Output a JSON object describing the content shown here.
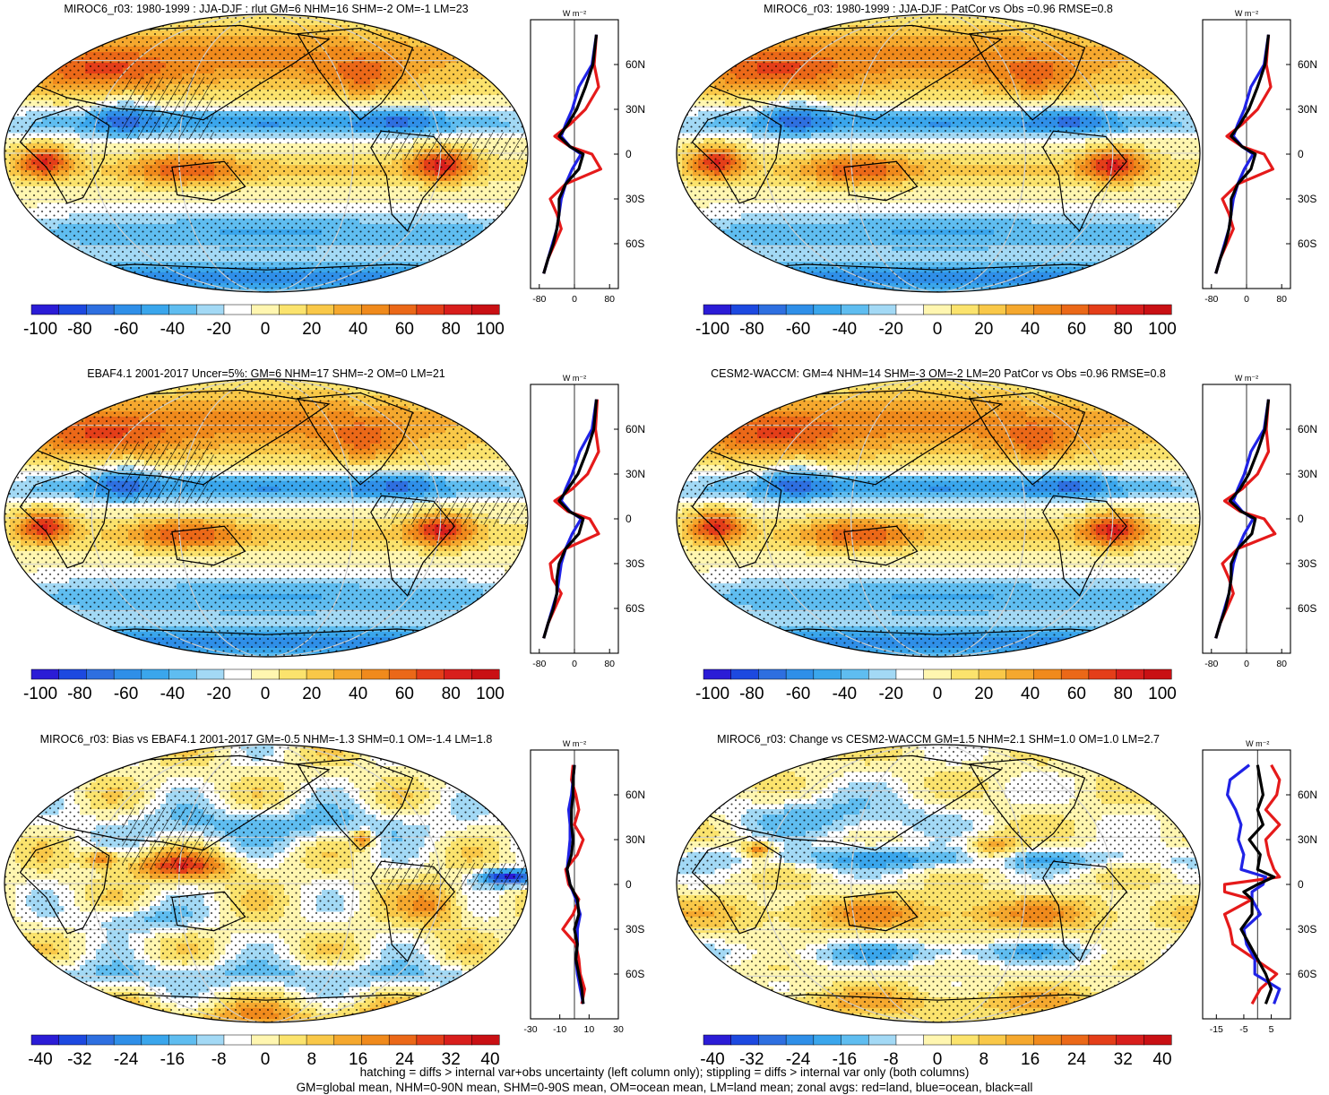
{
  "colors": {
    "div11": [
      "#2b1cd6",
      "#1d49e0",
      "#2e6fe0",
      "#2f8fe8",
      "#3aa6ec",
      "#5fbdf0",
      "#a3d9f5",
      "#ffffff",
      "#fff6b0",
      "#fbe36d",
      "#f9c848",
      "#f5a82e",
      "#f08a1c",
      "#eb6818",
      "#e43e19",
      "#d81e1c",
      "#c91014"
    ],
    "land": "#e51a1a",
    "ocean": "#1f22e6",
    "all": "#000000",
    "coast": "#000000",
    "grid": "#cfcfcf"
  },
  "footer": {
    "line1": "hatching = diffs > internal var+obs uncertainty (left column only); stippling = diffs > internal var only (both columns)",
    "line2": "GM=global mean, NHM=0-90N mean, SHM=0-90S mean, OM=ocean mean, LM=land mean; zonal avgs: red=land, blue=ocean, black=all"
  },
  "chart_data": [
    {
      "type": "heatmap",
      "title": "MIROC6_r03: 1980-1999 : JJA-DJF : rlut GM=6 NHM=16 SHM=-2 OM=-1 LM=23",
      "colorbar_ticks": [
        "-100",
        "-80",
        "-60",
        "-40",
        "-20",
        "0",
        "20",
        "40",
        "60",
        "80",
        "100"
      ],
      "colorbar_range": [
        -100,
        100
      ],
      "field": "jjadjf",
      "hatching": true,
      "zonal": {
        "unit_label": "W m⁻²",
        "xlim": [
          -100,
          100
        ],
        "xticks": [
          -80,
          0,
          80
        ],
        "xtick_labels": [
          "-80",
          "0",
          "80"
        ],
        "ytick_labels": [
          "60N",
          "30N",
          "0",
          "30S",
          "60S"
        ],
        "lat": [
          80,
          60,
          45,
          30,
          20,
          12,
          5,
          0,
          -10,
          -20,
          -30,
          -40,
          -50,
          -60,
          -70,
          -80
        ],
        "land": [
          50,
          45,
          55,
          25,
          -10,
          -45,
          -10,
          40,
          60,
          -20,
          -55,
          -40,
          -30,
          -45,
          -60,
          -70
        ],
        "ocean": [
          50,
          40,
          10,
          -5,
          -20,
          -30,
          -10,
          15,
          -5,
          -20,
          -30,
          -35,
          -40,
          -50,
          -60,
          -70
        ],
        "all": [
          50,
          42,
          25,
          5,
          -15,
          -35,
          -10,
          20,
          10,
          -20,
          -35,
          -35,
          -40,
          -48,
          -60,
          -70
        ]
      }
    },
    {
      "type": "heatmap",
      "title": "MIROC6_r03: 1980-1999 : JJA-DJF : PatCor vs Obs =0.96 RMSE=0.8",
      "colorbar_ticks": [
        "-100",
        "-80",
        "-60",
        "-40",
        "-20",
        "0",
        "20",
        "40",
        "60",
        "80",
        "100"
      ],
      "colorbar_range": [
        -100,
        100
      ],
      "field": "jjadjf",
      "hatching": false,
      "zonal": {
        "unit_label": "W m⁻²",
        "xlim": [
          -100,
          100
        ],
        "xticks": [
          -80,
          0,
          80
        ],
        "xtick_labels": [
          "-80",
          "0",
          "80"
        ],
        "ytick_labels": [
          "60N",
          "30N",
          "0",
          "30S",
          "60S"
        ],
        "lat": [
          80,
          60,
          45,
          30,
          20,
          12,
          5,
          0,
          -10,
          -20,
          -30,
          -40,
          -50,
          -60,
          -70,
          -80
        ],
        "land": [
          50,
          45,
          55,
          25,
          -10,
          -45,
          -10,
          40,
          60,
          -20,
          -55,
          -40,
          -30,
          -45,
          -60,
          -70
        ],
        "ocean": [
          50,
          40,
          10,
          -5,
          -20,
          -30,
          -10,
          15,
          -5,
          -20,
          -30,
          -35,
          -40,
          -50,
          -60,
          -70
        ],
        "all": [
          50,
          42,
          25,
          5,
          -15,
          -35,
          -10,
          20,
          10,
          -20,
          -35,
          -35,
          -40,
          -48,
          -60,
          -70
        ]
      }
    },
    {
      "type": "heatmap",
      "title": "EBAF4.1 2001-2017 Uncer=5%: GM=6 NHM=17 SHM=-2 OM=0 LM=21",
      "colorbar_ticks": [
        "-100",
        "-80",
        "-60",
        "-40",
        "-20",
        "0",
        "20",
        "40",
        "60",
        "80",
        "100"
      ],
      "colorbar_range": [
        -100,
        100
      ],
      "field": "jjadjf",
      "hatching": true,
      "zonal": {
        "unit_label": "W m⁻²",
        "xlim": [
          -100,
          100
        ],
        "xticks": [
          -80,
          0,
          80
        ],
        "xtick_labels": [
          "-80",
          "0",
          "80"
        ],
        "ytick_labels": [
          "60N",
          "30N",
          "0",
          "30S",
          "60S"
        ],
        "lat": [
          80,
          60,
          45,
          30,
          20,
          12,
          5,
          0,
          -10,
          -20,
          -30,
          -40,
          -50,
          -60,
          -70,
          -80
        ],
        "land": [
          52,
          48,
          55,
          30,
          -5,
          -45,
          -15,
          35,
          55,
          -20,
          -55,
          -50,
          -30,
          -45,
          -60,
          -70
        ],
        "ocean": [
          50,
          40,
          12,
          -5,
          -20,
          -30,
          -10,
          15,
          -5,
          -20,
          -30,
          -35,
          -40,
          -50,
          -60,
          -70
        ],
        "all": [
          50,
          44,
          28,
          8,
          -15,
          -35,
          -12,
          20,
          10,
          -20,
          -35,
          -40,
          -40,
          -48,
          -60,
          -70
        ]
      }
    },
    {
      "type": "heatmap",
      "title": "CESM2-WACCM: GM=4 NHM=14 SHM=-3 OM=-2 LM=20 PatCor vs Obs =0.96 RMSE=0.8",
      "colorbar_ticks": [
        "-100",
        "-80",
        "-60",
        "-40",
        "-20",
        "0",
        "20",
        "40",
        "60",
        "80",
        "100"
      ],
      "colorbar_range": [
        -100,
        100
      ],
      "field": "jjadjf",
      "hatching": false,
      "zonal": {
        "unit_label": "W m⁻²",
        "xlim": [
          -100,
          100
        ],
        "xticks": [
          -80,
          0,
          80
        ],
        "xtick_labels": [
          "-80",
          "0",
          "80"
        ],
        "ytick_labels": [
          "60N",
          "30N",
          "0",
          "30S",
          "60S"
        ],
        "lat": [
          80,
          60,
          45,
          30,
          20,
          12,
          5,
          0,
          -10,
          -20,
          -30,
          -40,
          -50,
          -60,
          -70,
          -80
        ],
        "land": [
          50,
          45,
          50,
          25,
          -10,
          -50,
          -15,
          40,
          65,
          -20,
          -55,
          -40,
          -30,
          -45,
          -60,
          -70
        ],
        "ocean": [
          50,
          40,
          10,
          -5,
          -20,
          -30,
          -10,
          15,
          -5,
          -20,
          -30,
          -35,
          -40,
          -50,
          -60,
          -70
        ],
        "all": [
          50,
          42,
          25,
          5,
          -15,
          -38,
          -12,
          20,
          12,
          -20,
          -35,
          -35,
          -40,
          -48,
          -60,
          -70
        ]
      }
    },
    {
      "type": "heatmap",
      "title": "MIROC6_r03: Bias vs EBAF4.1 2001-2017 GM=-0.5 NHM=-1.3 SHM=0.1 OM=-1.4 LM=1.8",
      "colorbar_ticks": [
        "-40",
        "-32",
        "-24",
        "-16",
        "-8",
        "0",
        "8",
        "16",
        "24",
        "32",
        "40"
      ],
      "colorbar_range": [
        -40,
        40
      ],
      "field": "bias",
      "hatching": true,
      "zonal": {
        "unit_label": "W m⁻²",
        "xlim": [
          -30,
          30
        ],
        "xticks": [
          -30,
          -10,
          10,
          30
        ],
        "xtick_labels": [
          "-30",
          "-10",
          "10",
          "30"
        ],
        "ytick_labels": [
          "60N",
          "30N",
          "0",
          "30S",
          "60S"
        ],
        "lat": [
          80,
          70,
          60,
          50,
          40,
          30,
          20,
          10,
          0,
          -10,
          -20,
          -30,
          -40,
          -50,
          -60,
          -70,
          -80
        ],
        "land": [
          -1,
          -2,
          1,
          3,
          0,
          6,
          2,
          -6,
          -4,
          3,
          -1,
          -8,
          1,
          3,
          4,
          7,
          5
        ],
        "ocean": [
          0,
          -1,
          -2,
          -4,
          -3,
          -3,
          -4,
          -5,
          -3,
          1,
          4,
          2,
          2,
          1,
          2,
          4,
          6
        ],
        "all": [
          0,
          -1,
          -1,
          -2,
          -2,
          -1,
          -2,
          -5,
          -3,
          2,
          3,
          0,
          2,
          1,
          3,
          5,
          6
        ]
      }
    },
    {
      "type": "heatmap",
      "title": "MIROC6_r03: Change vs CESM2-WACCM GM=1.5 NHM=2.1 SHM=1.0 OM=1.0 LM=2.7",
      "colorbar_ticks": [
        "-40",
        "-32",
        "-24",
        "-16",
        "-8",
        "0",
        "8",
        "16",
        "24",
        "32",
        "40"
      ],
      "colorbar_range": [
        -40,
        40
      ],
      "field": "change",
      "hatching": false,
      "zonal": {
        "unit_label": "W m⁻²",
        "xlim": [
          -20,
          12
        ],
        "xticks": [
          -15,
          -5,
          5
        ],
        "xtick_labels": [
          "-15",
          "-5",
          "5"
        ],
        "ytick_labels": [
          "60N",
          "30N",
          "0",
          "30S",
          "60S"
        ],
        "lat": [
          80,
          70,
          60,
          50,
          40,
          30,
          20,
          10,
          5,
          0,
          -5,
          -10,
          -20,
          -30,
          -40,
          -50,
          -60,
          -70,
          -80
        ],
        "land": [
          5,
          8,
          7,
          3,
          8,
          3,
          4,
          6,
          8,
          -12,
          -12,
          -2,
          -12,
          -10,
          -9,
          -1,
          7,
          1,
          -2
        ],
        "ocean": [
          -3,
          -10,
          -11,
          -8,
          -6,
          -7,
          -5,
          -6,
          3,
          2,
          -2,
          -2,
          1,
          -5,
          -4,
          -1,
          -1,
          8,
          6
        ],
        "all": [
          0,
          1,
          2,
          0,
          2,
          -3,
          1,
          0,
          6,
          0,
          -5,
          -2,
          -2,
          -6,
          -3,
          0,
          3,
          5,
          3
        ]
      }
    }
  ]
}
